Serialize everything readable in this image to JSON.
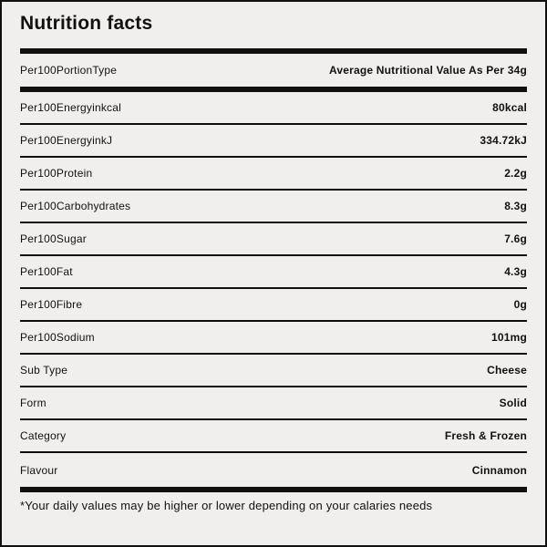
{
  "title": "Nutrition facts",
  "header_row": {
    "label": "Per100PortionType",
    "value": "Average Nutritional Value As Per 34g"
  },
  "rows": [
    {
      "label": "Per100Energyinkcal",
      "value": "80kcal"
    },
    {
      "label": "Per100EnergyinkJ",
      "value": "334.72kJ"
    },
    {
      "label": "Per100Protein",
      "value": "2.2g"
    },
    {
      "label": "Per100Carbohydrates",
      "value": "8.3g"
    },
    {
      "label": "Per100Sugar",
      "value": "7.6g"
    },
    {
      "label": "Per100Fat",
      "value": "4.3g"
    },
    {
      "label": "Per100Fibre",
      "value": "0g"
    },
    {
      "label": "Per100Sodium",
      "value": "101mg"
    },
    {
      "label": "Sub Type",
      "value": "Cheese"
    },
    {
      "label": "Form",
      "value": "Solid"
    },
    {
      "label": "Category",
      "value": "Fresh & Frozen"
    },
    {
      "label": "Flavour",
      "value": "Cinnamon"
    }
  ],
  "footer": {
    "note": "*Your daily values may be higher or lower depending on your calaries needs"
  },
  "colors": {
    "background": "#f0efed",
    "ink": "#111111",
    "divider": "#101010"
  }
}
